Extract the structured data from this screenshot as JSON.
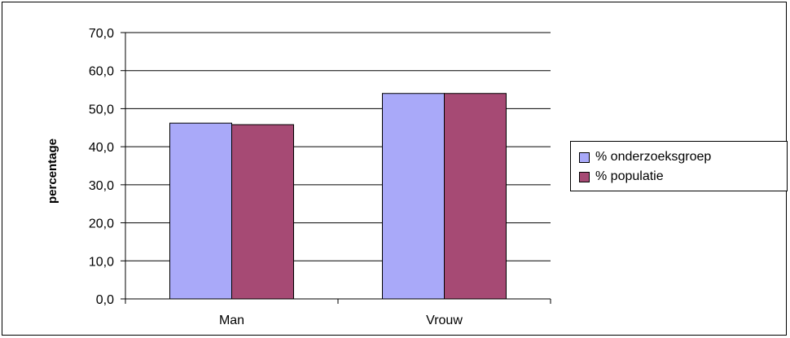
{
  "chart_data": {
    "type": "bar",
    "categories": [
      "Man",
      "Vrouw"
    ],
    "series": [
      {
        "name": "% onderzoeksgroep",
        "values": [
          46.2,
          54.0
        ],
        "color": "#a9a9f9"
      },
      {
        "name": "% populatie",
        "values": [
          45.8,
          54.0
        ],
        "color": "#a64a74"
      }
    ],
    "title": "",
    "xlabel": "",
    "ylabel": "percentage",
    "ylim": [
      0,
      70
    ],
    "yticks": [
      "0,0",
      "10,0",
      "20,0",
      "30,0",
      "40,0",
      "50,0",
      "60,0",
      "70,0"
    ],
    "grid": true,
    "legend_position": "right"
  }
}
